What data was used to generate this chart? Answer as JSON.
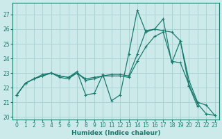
{
  "xlabel": "Humidex (Indice chaleur)",
  "xlim": [
    -0.5,
    23.5
  ],
  "ylim": [
    19.8,
    27.8
  ],
  "yticks": [
    20,
    21,
    22,
    23,
    24,
    25,
    26,
    27
  ],
  "xticks": [
    0,
    1,
    2,
    3,
    4,
    5,
    6,
    7,
    8,
    9,
    10,
    11,
    12,
    13,
    14,
    15,
    16,
    17,
    18,
    19,
    20,
    21,
    22,
    23
  ],
  "bg_color": "#cceaea",
  "grid_color": "#aad4d4",
  "line_color": "#1a7a6e",
  "line1_x": [
    0,
    1,
    2,
    3,
    4,
    5,
    6,
    7,
    8,
    9,
    10,
    11,
    12,
    13,
    14,
    15,
    16,
    17,
    18,
    19,
    20,
    21
  ],
  "line1_y": [
    21.5,
    22.3,
    22.6,
    22.9,
    23.0,
    22.8,
    22.7,
    23.1,
    21.5,
    21.6,
    22.9,
    21.1,
    21.5,
    24.3,
    27.3,
    25.8,
    26.0,
    26.7,
    23.7,
    25.2,
    22.1,
    20.7
  ],
  "line2_x": [
    0,
    1,
    2,
    3,
    4,
    5,
    6,
    7,
    8,
    9,
    10,
    11,
    12,
    13,
    14,
    15,
    16,
    17,
    18,
    19,
    20,
    21,
    22,
    23
  ],
  "line2_y": [
    21.5,
    22.3,
    22.6,
    22.8,
    23.0,
    22.8,
    22.7,
    23.0,
    22.6,
    22.7,
    22.8,
    22.9,
    22.9,
    22.8,
    24.3,
    25.9,
    26.0,
    25.9,
    25.8,
    25.2,
    22.5,
    21.0,
    20.8,
    20.1
  ],
  "line3_x": [
    0,
    1,
    2,
    3,
    4,
    5,
    6,
    7,
    8,
    9,
    10,
    11,
    12,
    13,
    14,
    15,
    16,
    17,
    18,
    19,
    20,
    21,
    22,
    23
  ],
  "line3_y": [
    21.5,
    22.3,
    22.6,
    22.8,
    23.0,
    22.7,
    22.6,
    23.0,
    22.5,
    22.6,
    22.8,
    22.8,
    22.8,
    22.7,
    23.8,
    24.8,
    25.5,
    25.8,
    23.8,
    23.7,
    22.2,
    20.9,
    20.2,
    20.1
  ],
  "figsize": [
    3.2,
    2.0
  ],
  "dpi": 100
}
